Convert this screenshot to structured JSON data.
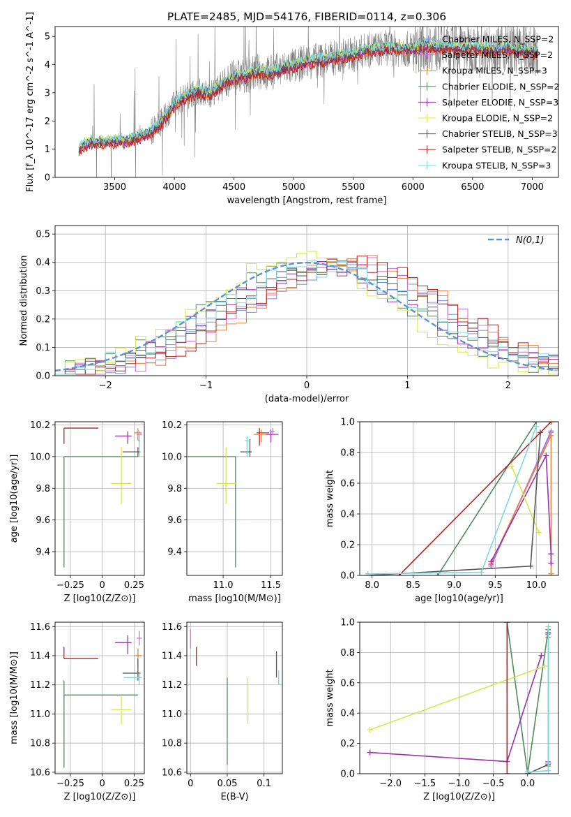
{
  "figure": {
    "title": "PLATE=2485, MJD=54176, FIBERID=0114, z=0.306"
  },
  "chart_data": [
    {
      "id": "spectrum",
      "type": "line",
      "xlabel": "wavelength [Angstrom, rest frame]",
      "ylabel": "Flux [f_λ 10^-17 erg cm^-2 s^-1 A^-1]",
      "xlim": [
        3000,
        7220
      ],
      "ylim": [
        0,
        5.35
      ],
      "xticks": [
        3500,
        4000,
        4500,
        5000,
        5500,
        6000,
        6500,
        7000
      ],
      "yticks": [
        0,
        1,
        2,
        3,
        4,
        5
      ],
      "grid": false,
      "legend_position": "top-right",
      "data_series": {
        "name": "data",
        "color": "#808080",
        "x_range": [
          3200,
          7050
        ]
      },
      "model_envelope_x": [
        3200,
        3300,
        3400,
        3500,
        3600,
        3700,
        3800,
        3900,
        4000,
        4100,
        4200,
        4300,
        4400,
        4500,
        4600,
        4700,
        4800,
        4900,
        5000,
        5100,
        5200,
        5300,
        5400,
        5500,
        5600,
        5700,
        5800,
        5900,
        6000,
        6100,
        6200,
        6300,
        6400,
        6500,
        6600,
        6700,
        6800,
        6900,
        7000
      ],
      "model_envelope_y": [
        1.05,
        1.25,
        1.25,
        1.3,
        1.3,
        1.45,
        1.6,
        2.0,
        2.6,
        2.9,
        3.05,
        2.95,
        3.3,
        3.55,
        3.6,
        3.75,
        3.7,
        3.85,
        3.95,
        4.1,
        4.15,
        4.2,
        4.3,
        4.35,
        4.5,
        4.55,
        4.6,
        4.55,
        4.55,
        4.7,
        4.6,
        4.65,
        4.55,
        4.6,
        4.55,
        4.55,
        4.6,
        4.5,
        4.45
      ],
      "series": [
        {
          "name": "Chabrier MILES, N_SSP=2",
          "color": "#6b8fe0",
          "offset": 0.0
        },
        {
          "name": "Salpeter MILES, N_SSP=2",
          "color": "#d36fd3",
          "offset": -0.05
        },
        {
          "name": "Kroupa MILES, N_SSP=3",
          "color": "#e6843c",
          "offset": -0.1
        },
        {
          "name": "Chabrier ELODIE, N_SSP=2",
          "color": "#4f8a5a",
          "offset": 0.05
        },
        {
          "name": "Salpeter ELODIE, N_SSP=3",
          "color": "#9b2fae",
          "offset": -0.03
        },
        {
          "name": "Kroupa ELODIE, N_SSP=2",
          "color": "#d4e84a",
          "offset": 0.08
        },
        {
          "name": "Chabrier STELIB, N_SSP=3",
          "color": "#555555",
          "offset": 0.02
        },
        {
          "name": "Salpeter STELIB, N_SSP=2",
          "color": "#b22222",
          "offset": -0.12
        },
        {
          "name": "Kroupa STELIB, N_SSP=3",
          "color": "#7fd8dc",
          "offset": 0.1
        }
      ]
    },
    {
      "id": "residuals",
      "type": "bar",
      "xlabel": "(data-model)/error",
      "ylabel": "Normed distribution",
      "xlim": [
        -2.5,
        2.5
      ],
      "ylim": [
        0,
        0.53
      ],
      "xticks": [
        -2,
        -1,
        0,
        1,
        2
      ],
      "yticks": [
        0.0,
        0.1,
        0.2,
        0.3,
        0.4,
        0.5
      ],
      "grid": true,
      "legend_position": "top-right",
      "legend": "N(0,1)",
      "bin_edges_range": [
        -2.5,
        2.5
      ],
      "n_bins": 50,
      "reference_curve": {
        "name": "N(0,1)",
        "color": "#5b8fd9",
        "style": "dashed",
        "mu": 0,
        "sigma": 1
      },
      "histograms_mean_shift": [
        0.35,
        0.4,
        0.45,
        0.05,
        0.1,
        -0.1,
        0.2,
        0.45,
        0.15
      ],
      "histograms_sigma": [
        1.05,
        1.0,
        1.0,
        1.0,
        1.05,
        0.95,
        1.0,
        1.02,
        1.05
      ]
    },
    {
      "id": "age-vs-Z",
      "type": "scatter",
      "xlabel": "Z [log10(Z/Z⊙)]",
      "ylabel": "age [log10(age/yr)]",
      "xlim": [
        -0.37,
        0.33
      ],
      "ylim": [
        9.25,
        10.22
      ],
      "xticks": [
        -0.25,
        0.0,
        0.25
      ],
      "yticks": [
        9.4,
        9.6,
        9.8,
        10.0,
        10.2
      ],
      "grid": true,
      "points": [
        {
          "x": -0.3,
          "y": 10.18,
          "xerr": [
            0.0,
            0.27
          ],
          "yerr": [
            0.1,
            0.0
          ],
          "color": "#b22222"
        },
        {
          "x": -0.3,
          "y": 10.0,
          "xerr": [
            0.0,
            0.58
          ],
          "yerr": [
            0.7,
            0.0
          ],
          "color": "#4f8a5a"
        },
        {
          "x": 0.15,
          "y": 9.83,
          "xerr": [
            0.08,
            0.08
          ],
          "yerr": [
            0.13,
            0.23
          ],
          "color": "#d4e84a"
        },
        {
          "x": 0.2,
          "y": 10.13,
          "xerr": [
            0.1,
            0.03
          ],
          "yerr": [
            0.05,
            0.03
          ],
          "color": "#9b2fae"
        },
        {
          "x": 0.28,
          "y": 10.15,
          "xerr": [
            0.03,
            0.03
          ],
          "yerr": [
            0.05,
            0.03
          ],
          "color": "#e6843c"
        },
        {
          "x": 0.28,
          "y": 10.03,
          "xerr": [
            0.12,
            0.02
          ],
          "yerr": [
            0.03,
            0.03
          ],
          "color": "#555555"
        },
        {
          "x": 0.29,
          "y": 10.14,
          "xerr": [
            0.02,
            0.02
          ],
          "yerr": [
            0.06,
            0.02
          ],
          "color": "#d36fd3"
        },
        {
          "x": 0.29,
          "y": 10.1,
          "xerr": [
            0.01,
            0.01
          ],
          "yerr": [
            0.1,
            0.05
          ],
          "color": "#7fd8dc"
        }
      ]
    },
    {
      "id": "age-vs-mass",
      "type": "scatter",
      "xlabel": "mass [log10(M/M⊙)]",
      "ylabel": "",
      "xlim": [
        10.62,
        11.62
      ],
      "ylim": [
        9.25,
        10.22
      ],
      "xticks": [
        11.0,
        11.5
      ],
      "yticks": [
        9.4,
        9.6,
        9.8,
        10.0,
        10.2
      ],
      "grid": true,
      "points": [
        {
          "x": 11.13,
          "y": 10.0,
          "xerr": [
            0.5,
            0.0
          ],
          "yerr": [
            0.7,
            0.0
          ],
          "color": "#4f8a5a"
        },
        {
          "x": 11.03,
          "y": 9.83,
          "xerr": [
            0.1,
            0.1
          ],
          "yerr": [
            0.13,
            0.23
          ],
          "color": "#d4e84a"
        },
        {
          "x": 11.28,
          "y": 10.03,
          "xerr": [
            0.1,
            0.02
          ],
          "yerr": [
            0.03,
            0.08
          ],
          "color": "#555555"
        },
        {
          "x": 11.25,
          "y": 10.1,
          "xerr": [
            0.02,
            0.02
          ],
          "yerr": [
            0.1,
            0.03
          ],
          "color": "#7fd8dc"
        },
        {
          "x": 11.38,
          "y": 10.15,
          "xerr": [
            0.03,
            0.1
          ],
          "yerr": [
            0.08,
            0.03
          ],
          "color": "#b22222"
        },
        {
          "x": 11.4,
          "y": 10.14,
          "xerr": [
            0.08,
            0.05
          ],
          "yerr": [
            0.05,
            0.03
          ],
          "color": "#e6843c"
        },
        {
          "x": 11.5,
          "y": 10.14,
          "xerr": [
            0.05,
            0.08
          ],
          "yerr": [
            0.05,
            0.03
          ],
          "color": "#9b2fae"
        },
        {
          "x": 11.52,
          "y": 10.16,
          "xerr": [
            0.02,
            0.02
          ],
          "yerr": [
            0.02,
            0.02
          ],
          "color": "#d36fd3"
        }
      ]
    },
    {
      "id": "weight-vs-age",
      "type": "line",
      "xlabel": "age [log10(age/yr)]",
      "ylabel": "mass weight",
      "xlim": [
        7.85,
        10.27
      ],
      "ylim": [
        0,
        1.0
      ],
      "xticks": [
        8.0,
        8.5,
        9.0,
        9.5,
        10.0
      ],
      "yticks": [
        0.0,
        0.2,
        0.4,
        0.6,
        0.8,
        1.0
      ],
      "grid": true,
      "series": [
        {
          "name": "Chabrier MILES, N_SSP=2",
          "color": "#6b8fe0",
          "x": [
            9.45,
            10.18
          ],
          "y": [
            0.06,
            0.94
          ]
        },
        {
          "name": "Salpeter MILES, N_SSP=2",
          "color": "#d36fd3",
          "x": [
            9.45,
            10.18
          ],
          "y": [
            0.07,
            0.93
          ]
        },
        {
          "name": "Kroupa MILES, N_SSP=3",
          "color": "#e6843c",
          "x": [
            9.45,
            10.18,
            10.18
          ],
          "y": [
            0.08,
            0.91,
            0.01
          ]
        },
        {
          "name": "Chabrier ELODIE, N_SSP=2",
          "color": "#4f8a5a",
          "x": [
            8.8,
            10.0
          ],
          "y": [
            0.0,
            1.0
          ]
        },
        {
          "name": "Salpeter ELODIE, N_SSP=3",
          "color": "#9b2fae",
          "x": [
            9.45,
            10.12,
            10.18,
            10.18
          ],
          "y": [
            0.09,
            0.78,
            0.14,
            0.08
          ]
        },
        {
          "name": "Kroupa ELODIE, N_SSP=2",
          "color": "#d4e84a",
          "x": [
            9.7,
            10.03
          ],
          "y": [
            0.71,
            0.28
          ]
        },
        {
          "name": "Chabrier STELIB, N_SSP=3",
          "color": "#555555",
          "x": [
            7.95,
            9.93,
            10.05
          ],
          "y": [
            0.0,
            0.06,
            0.93
          ]
        },
        {
          "name": "Salpeter STELIB, N_SSP=2",
          "color": "#b22222",
          "x": [
            8.33,
            10.18
          ],
          "y": [
            0.0,
            1.0
          ]
        },
        {
          "name": "Kroupa STELIB, N_SSP=3",
          "color": "#7fd8dc",
          "x": [
            7.95,
            9.33,
            10.0
          ],
          "y": [
            0.01,
            0.02,
            0.97
          ]
        }
      ]
    },
    {
      "id": "mass-vs-Z",
      "type": "scatter",
      "xlabel": "Z [log10(Z/Z⊙)]",
      "ylabel": "mass [log10(M/M⊙)]",
      "xlim": [
        -0.37,
        0.33
      ],
      "ylim": [
        10.59,
        11.63
      ],
      "xticks": [
        -0.25,
        0.0,
        0.25
      ],
      "yticks": [
        10.6,
        10.8,
        11.0,
        11.2,
        11.4,
        11.6
      ],
      "grid": true,
      "points": [
        {
          "x": -0.3,
          "y": 11.38,
          "xerr": [
            0.0,
            0.27
          ],
          "yerr": [
            0.0,
            0.08
          ],
          "color": "#b22222"
        },
        {
          "x": -0.3,
          "y": 11.13,
          "xerr": [
            0.0,
            0.58
          ],
          "yerr": [
            0.5,
            0.1
          ],
          "color": "#4f8a5a"
        },
        {
          "x": 0.15,
          "y": 11.03,
          "xerr": [
            0.08,
            0.08
          ],
          "yerr": [
            0.1,
            0.1
          ],
          "color": "#d4e84a"
        },
        {
          "x": 0.2,
          "y": 11.49,
          "xerr": [
            0.1,
            0.03
          ],
          "yerr": [
            0.08,
            0.05
          ],
          "color": "#9b2fae"
        },
        {
          "x": 0.28,
          "y": 11.4,
          "xerr": [
            0.03,
            0.03
          ],
          "yerr": [
            0.08,
            0.05
          ],
          "color": "#e6843c"
        },
        {
          "x": 0.28,
          "y": 11.28,
          "xerr": [
            0.12,
            0.02
          ],
          "yerr": [
            0.05,
            0.1
          ],
          "color": "#555555"
        },
        {
          "x": 0.29,
          "y": 11.52,
          "xerr": [
            0.02,
            0.02
          ],
          "yerr": [
            0.05,
            0.05
          ],
          "color": "#d36fd3"
        },
        {
          "x": 0.29,
          "y": 11.25,
          "xerr": [
            0.12,
            0.02
          ],
          "yerr": [
            0.05,
            0.03
          ],
          "color": "#7fd8dc"
        }
      ]
    },
    {
      "id": "mass-vs-EBV",
      "type": "scatter",
      "xlabel": "E(B-V)",
      "ylabel": "",
      "xlim": [
        -0.005,
        0.125
      ],
      "ylim": [
        10.59,
        11.63
      ],
      "xticks": [
        0.0,
        0.05,
        0.1
      ],
      "yticks": [
        10.6,
        10.8,
        11.0,
        11.2,
        11.4,
        11.6
      ],
      "grid": true,
      "points": [
        {
          "x": 0.0,
          "y": 11.5,
          "xerr": [
            0,
            0
          ],
          "yerr": [
            0.05,
            0.08
          ],
          "color": "#d36fd3"
        },
        {
          "x": 0.008,
          "y": 11.38,
          "xerr": [
            0,
            0
          ],
          "yerr": [
            0.05,
            0.08
          ],
          "color": "#b22222"
        },
        {
          "x": 0.05,
          "y": 10.95,
          "xerr": [
            0,
            0
          ],
          "yerr": [
            0.3,
            0.3
          ],
          "color": "#4f8a5a"
        },
        {
          "x": 0.078,
          "y": 11.03,
          "xerr": [
            0,
            0
          ],
          "yerr": [
            0.1,
            0.22
          ],
          "color": "#d4e84a"
        },
        {
          "x": 0.117,
          "y": 11.33,
          "xerr": [
            0,
            0
          ],
          "yerr": [
            0.08,
            0.1
          ],
          "color": "#555555"
        },
        {
          "x": 0.12,
          "y": 11.25,
          "xerr": [
            0,
            0
          ],
          "yerr": [
            0.05,
            0.05
          ],
          "color": "#7fd8dc"
        }
      ]
    },
    {
      "id": "weight-vs-Z",
      "type": "line",
      "xlabel": "Z [log10(Z/Z⊙)]",
      "ylabel": "mass weight",
      "xlim": [
        -2.45,
        0.45
      ],
      "ylim": [
        0,
        1.0
      ],
      "xticks": [
        -2.0,
        -1.5,
        -1.0,
        -0.5,
        0.0
      ],
      "yticks": [
        0.0,
        0.2,
        0.4,
        0.6,
        0.8,
        1.0
      ],
      "grid": true,
      "series": [
        {
          "name": "Chabrier MILES, N_SSP=2",
          "color": "#6b8fe0",
          "x": [
            0.3,
            0.3
          ],
          "y": [
            0.07,
            0.93
          ]
        },
        {
          "name": "Salpeter MILES, N_SSP=2",
          "color": "#d36fd3",
          "x": [
            0.3,
            0.3
          ],
          "y": [
            0.08,
            0.92
          ]
        },
        {
          "name": "Kroupa MILES, N_SSP=3",
          "color": "#e6843c",
          "x": [
            0.3,
            0.3
          ],
          "y": [
            0.05,
            0.9
          ]
        },
        {
          "name": "Chabrier ELODIE, N_SSP=2",
          "color": "#4f8a5a",
          "x": [
            -0.3,
            0.0,
            0.3
          ],
          "y": [
            1.0,
            0.0,
            0.95
          ]
        },
        {
          "name": "Salpeter ELODIE, N_SSP=3",
          "color": "#9b2fae",
          "x": [
            -2.3,
            -0.3,
            0.2
          ],
          "y": [
            0.14,
            0.08,
            0.78
          ]
        },
        {
          "name": "Kroupa ELODIE, N_SSP=2",
          "color": "#d4e84a",
          "x": [
            -2.3,
            0.25
          ],
          "y": [
            0.29,
            0.71
          ]
        },
        {
          "name": "Chabrier STELIB, N_SSP=3",
          "color": "#555555",
          "x": [
            0.0,
            0.3,
            0.3
          ],
          "y": [
            0.0,
            0.06,
            0.93
          ]
        },
        {
          "name": "Salpeter STELIB, N_SSP=2",
          "color": "#b22222",
          "x": [
            -0.3,
            -0.3
          ],
          "y": [
            0.0,
            1.0
          ]
        },
        {
          "name": "Kroupa STELIB, N_SSP=3",
          "color": "#7fd8dc",
          "x": [
            0.0,
            0.3,
            0.3
          ],
          "y": [
            0.01,
            0.02,
            0.97
          ]
        }
      ]
    }
  ]
}
